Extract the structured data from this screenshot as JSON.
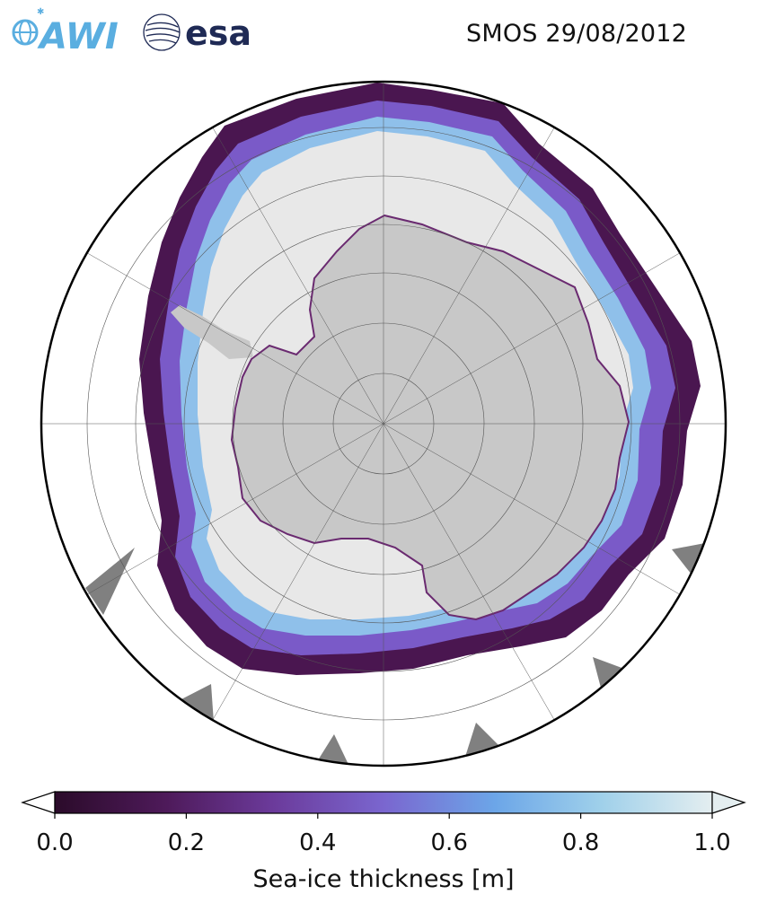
{
  "header": {
    "logo_awi_text": "AWI",
    "logo_esa_text": "esa",
    "title": "SMOS 29/08/2012"
  },
  "colors": {
    "land": "#c8c8c8",
    "ice_thick": "#e8e8e8",
    "ice_edge_dark": "#3a0f3a",
    "ice_mid": "#7a4aa8",
    "ice_light": "#6ca6e8",
    "missing": "#808080",
    "awi_blue": "#5aaee0",
    "esa_navy": "#1f2a55"
  },
  "colorbar": {
    "label": "Sea-ice thickness [m]",
    "min": 0.0,
    "max": 1.0,
    "extend": "both",
    "ticks": [
      "0.0",
      "0.2",
      "0.4",
      "0.6",
      "0.8",
      "1.0"
    ],
    "stops": [
      "#2b0b2a",
      "#4e1a5a",
      "#6b3a9a",
      "#7a66cf",
      "#6ca6e8",
      "#9fd0ea",
      "#e4eef0"
    ]
  }
}
